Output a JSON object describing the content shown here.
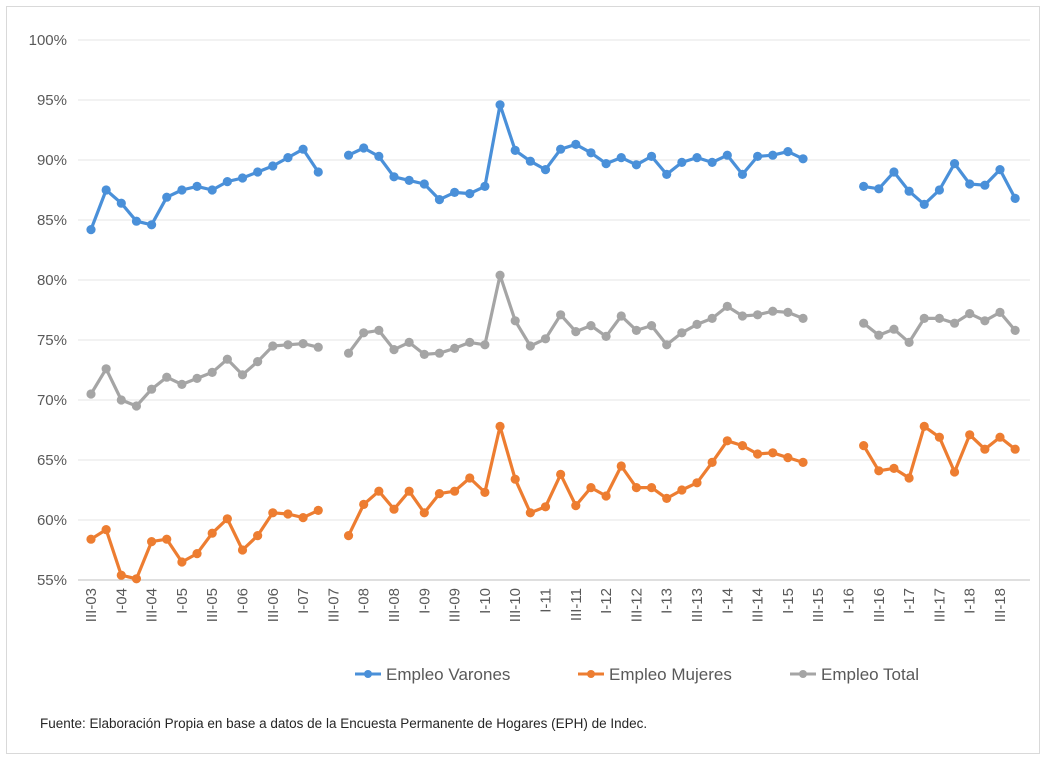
{
  "chart_data": {
    "type": "line",
    "x": [
      "III-03",
      "IV-03",
      "I-04",
      "II-04",
      "III-04",
      "IV-04",
      "I-05",
      "II-05",
      "III-05",
      "IV-05",
      "I-06",
      "II-06",
      "III-06",
      "IV-06",
      "I-07",
      "II-07",
      "III-07",
      "IV-07",
      "I-08",
      "II-08",
      "III-08",
      "IV-08",
      "I-09",
      "II-09",
      "III-09",
      "IV-09",
      "I-10",
      "II-10",
      "III-10",
      "IV-10",
      "I-11",
      "II-11",
      "III-11",
      "IV-11",
      "I-12",
      "II-12",
      "III-12",
      "IV-12",
      "I-13",
      "II-13",
      "III-13",
      "IV-13",
      "I-14",
      "II-14",
      "III-14",
      "IV-14",
      "I-15",
      "II-15",
      "III-15",
      "IV-15",
      "I-16",
      "II-16",
      "III-16",
      "IV-16",
      "I-17",
      "II-17",
      "III-17",
      "IV-17",
      "I-18",
      "II-18",
      "III-18",
      "IV-18"
    ],
    "x_tick_labels": [
      "III-03",
      "I-04",
      "III-04",
      "I-05",
      "III-05",
      "I-06",
      "III-06",
      "I-07",
      "III-07",
      "I-08",
      "III-08",
      "I-09",
      "III-09",
      "I-10",
      "III-10",
      "I-11",
      "III-11",
      "I-12",
      "III-12",
      "I-13",
      "III-13",
      "I-14",
      "III-14",
      "I-15",
      "III-15",
      "I-16",
      "III-16",
      "I-17",
      "III-17",
      "I-18",
      "III-18"
    ],
    "y_ticks": [
      "55%",
      "60%",
      "65%",
      "70%",
      "75%",
      "80%",
      "85%",
      "90%",
      "95%",
      "100%"
    ],
    "ylim": [
      55,
      100
    ],
    "grid": true,
    "legend_position": "bottom",
    "series": [
      {
        "name": "Empleo Varones",
        "color": "#4a90d9",
        "values": [
          84.2,
          87.5,
          86.4,
          84.9,
          84.6,
          86.9,
          87.5,
          87.8,
          87.5,
          88.2,
          88.5,
          89.0,
          89.5,
          90.2,
          90.9,
          89.0,
          null,
          90.4,
          91.0,
          90.3,
          88.6,
          88.3,
          88.0,
          86.7,
          87.3,
          87.2,
          87.8,
          94.6,
          90.8,
          89.9,
          89.2,
          90.9,
          91.3,
          90.6,
          89.7,
          90.2,
          89.6,
          90.3,
          88.8,
          89.8,
          90.2,
          89.8,
          90.4,
          88.8,
          90.3,
          90.4,
          90.7,
          90.1,
          null,
          null,
          null,
          87.8,
          87.6,
          89.0,
          87.4,
          86.3,
          87.5,
          89.7,
          88.0,
          87.9,
          89.2,
          86.8
        ]
      },
      {
        "name": "Empleo Mujeres",
        "color": "#ed7d31",
        "values": [
          58.4,
          59.2,
          55.4,
          55.1,
          58.2,
          58.4,
          56.5,
          57.2,
          58.9,
          60.1,
          57.5,
          58.7,
          60.6,
          60.5,
          60.2,
          60.8,
          null,
          58.7,
          61.3,
          62.4,
          60.9,
          62.4,
          60.6,
          62.2,
          62.4,
          63.5,
          62.3,
          67.8,
          63.4,
          60.6,
          61.1,
          63.8,
          61.2,
          62.7,
          62.0,
          64.5,
          62.7,
          62.7,
          61.8,
          62.5,
          63.1,
          64.8,
          66.6,
          66.2,
          65.5,
          65.6,
          65.2,
          64.8,
          null,
          null,
          null,
          66.2,
          64.1,
          64.3,
          63.5,
          67.8,
          66.9,
          64.0,
          67.1,
          65.9,
          66.9,
          65.9
        ]
      },
      {
        "name": "Empleo Total",
        "color": "#a5a5a5",
        "values": [
          70.5,
          72.6,
          70.0,
          69.5,
          70.9,
          71.9,
          71.3,
          71.8,
          72.3,
          73.4,
          72.1,
          73.2,
          74.5,
          74.6,
          74.7,
          74.4,
          null,
          73.9,
          75.6,
          75.8,
          74.2,
          74.8,
          73.8,
          73.9,
          74.3,
          74.8,
          74.6,
          80.4,
          76.6,
          74.5,
          75.1,
          77.1,
          75.7,
          76.2,
          75.3,
          77.0,
          75.8,
          76.2,
          74.6,
          75.6,
          76.3,
          76.8,
          77.8,
          77.0,
          77.1,
          77.4,
          77.3,
          76.8,
          null,
          null,
          null,
          76.4,
          75.4,
          75.9,
          74.8,
          76.8,
          76.8,
          76.4,
          77.2,
          76.6,
          77.3,
          75.8
        ]
      }
    ]
  },
  "source_note": "Fuente: Elaboración Propia en base a datos de la Encuesta Permanente de Hogares (EPH) de Indec."
}
